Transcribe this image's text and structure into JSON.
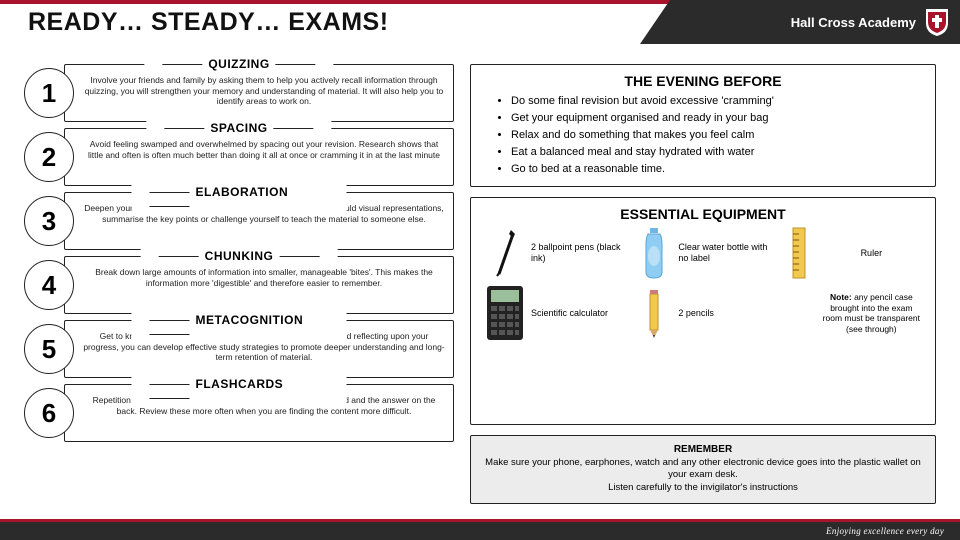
{
  "colors": {
    "accent": "#a8142c",
    "dark": "#2b2b2b",
    "panel_bg": "#ececec",
    "border": "#222222",
    "text": "#111111"
  },
  "header": {
    "title": "READY… STEADY… EXAMS!",
    "academy": "Hall Cross Academy"
  },
  "footer": {
    "tagline": "Enjoying excellence every day"
  },
  "strategies": [
    {
      "num": "1",
      "title": "QUIZZING",
      "body": "Involve your friends and family by asking them to help you actively recall information through quizzing, you will strengthen your memory and understanding of material. It will also help you to identify areas to work on."
    },
    {
      "num": "2",
      "title": "SPACING",
      "body": "Avoid feeling swamped and overwhelmed by spacing out your revision. Research shows that little and often is often much better than doing it all at once or cramming it in at the last minute"
    },
    {
      "num": "3",
      "title": "ELABORATION",
      "body": "Deepen your understanding rather than just memorising facts. You could visual representations, summarise the key points or challenge yourself to teach the material to someone else."
    },
    {
      "num": "4",
      "title": "CHUNKING",
      "body": "Break down large amounts of information into smaller, manageable 'bites'. This makes the information more 'digestible' and therefore easier to remember."
    },
    {
      "num": "5",
      "title": "METACOGNITION",
      "body": "Get to know what works for you. Trial different ways of revising and reflecting upon your progress, you can develop effective study strategies to promote deeper understanding and long-term retention of material."
    },
    {
      "num": "6",
      "title": "FLASHCARDS",
      "body": "Repetition, repetition, repetition! Write a 'cue' on the front of the card and the answer on the back. Review these more often when you are finding the content more difficult."
    }
  ],
  "evening": {
    "title": "THE EVENING BEFORE",
    "items": [
      "Do some final revision but avoid excessive 'cramming'",
      "Get your equipment organised and ready in your bag",
      "Relax and do something that makes you feel calm",
      "Eat a balanced meal and stay hydrated with water",
      "Go to bed at a reasonable time."
    ]
  },
  "equipment": {
    "title": "ESSENTIAL EQUIPMENT",
    "items": {
      "pens": "2 ballpoint pens (black ink)",
      "bottle": "Clear water bottle with no label",
      "ruler": "Ruler",
      "calculator": "Scientific calculator",
      "pencils": "2 pencils",
      "note_label": "Note:",
      "note_body": " any pencil case brought into the exam room must be transparent (see through)"
    }
  },
  "remember": {
    "title": "REMEMBER",
    "line1": "Make sure your phone, earphones, watch and any other electronic device goes into the plastic wallet on your exam desk.",
    "line2": "Listen carefully to the invigilator's instructions"
  }
}
